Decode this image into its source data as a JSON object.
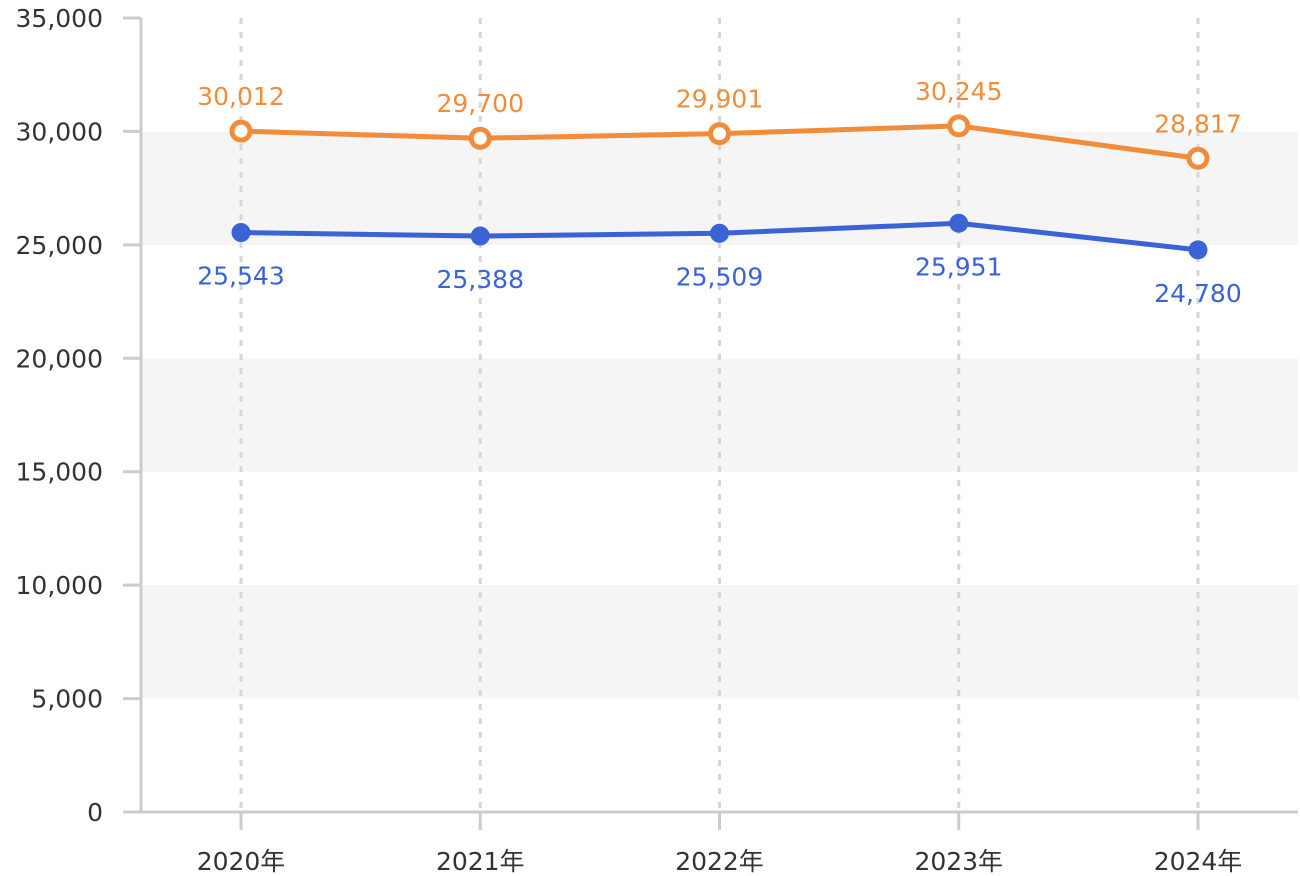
{
  "chart_data": {
    "type": "line",
    "categories": [
      "2020年",
      "2021年",
      "2022年",
      "2023年",
      "2024年"
    ],
    "series": [
      {
        "values": [
          30012,
          29700,
          29901,
          30245,
          28817
        ],
        "labels": [
          "30,012",
          "29,700",
          "29,901",
          "30,245",
          "28,817"
        ],
        "color": "#F08C3A",
        "marker": "hollow-circle",
        "label_position": "above"
      },
      {
        "values": [
          25543,
          25388,
          25509,
          25951,
          24780
        ],
        "labels": [
          "25,543",
          "25,388",
          "25,509",
          "25,951",
          "24,780"
        ],
        "color": "#3A63D6",
        "marker": "filled-circle",
        "label_position": "below"
      }
    ],
    "ylim": [
      0,
      35000
    ],
    "yticks": [
      0,
      5000,
      10000,
      15000,
      20000,
      25000,
      30000,
      35000
    ],
    "ytick_labels": [
      "0",
      "5,000",
      "10,000",
      "15,000",
      "20,000",
      "25,000",
      "30,000",
      "35,000"
    ],
    "xlabel": "",
    "ylabel": "",
    "title": "",
    "grid": "horizontal alternating bands, vertical dashed lines",
    "band_color": "#F5F5F5",
    "axis_color": "#CCCCCC"
  }
}
